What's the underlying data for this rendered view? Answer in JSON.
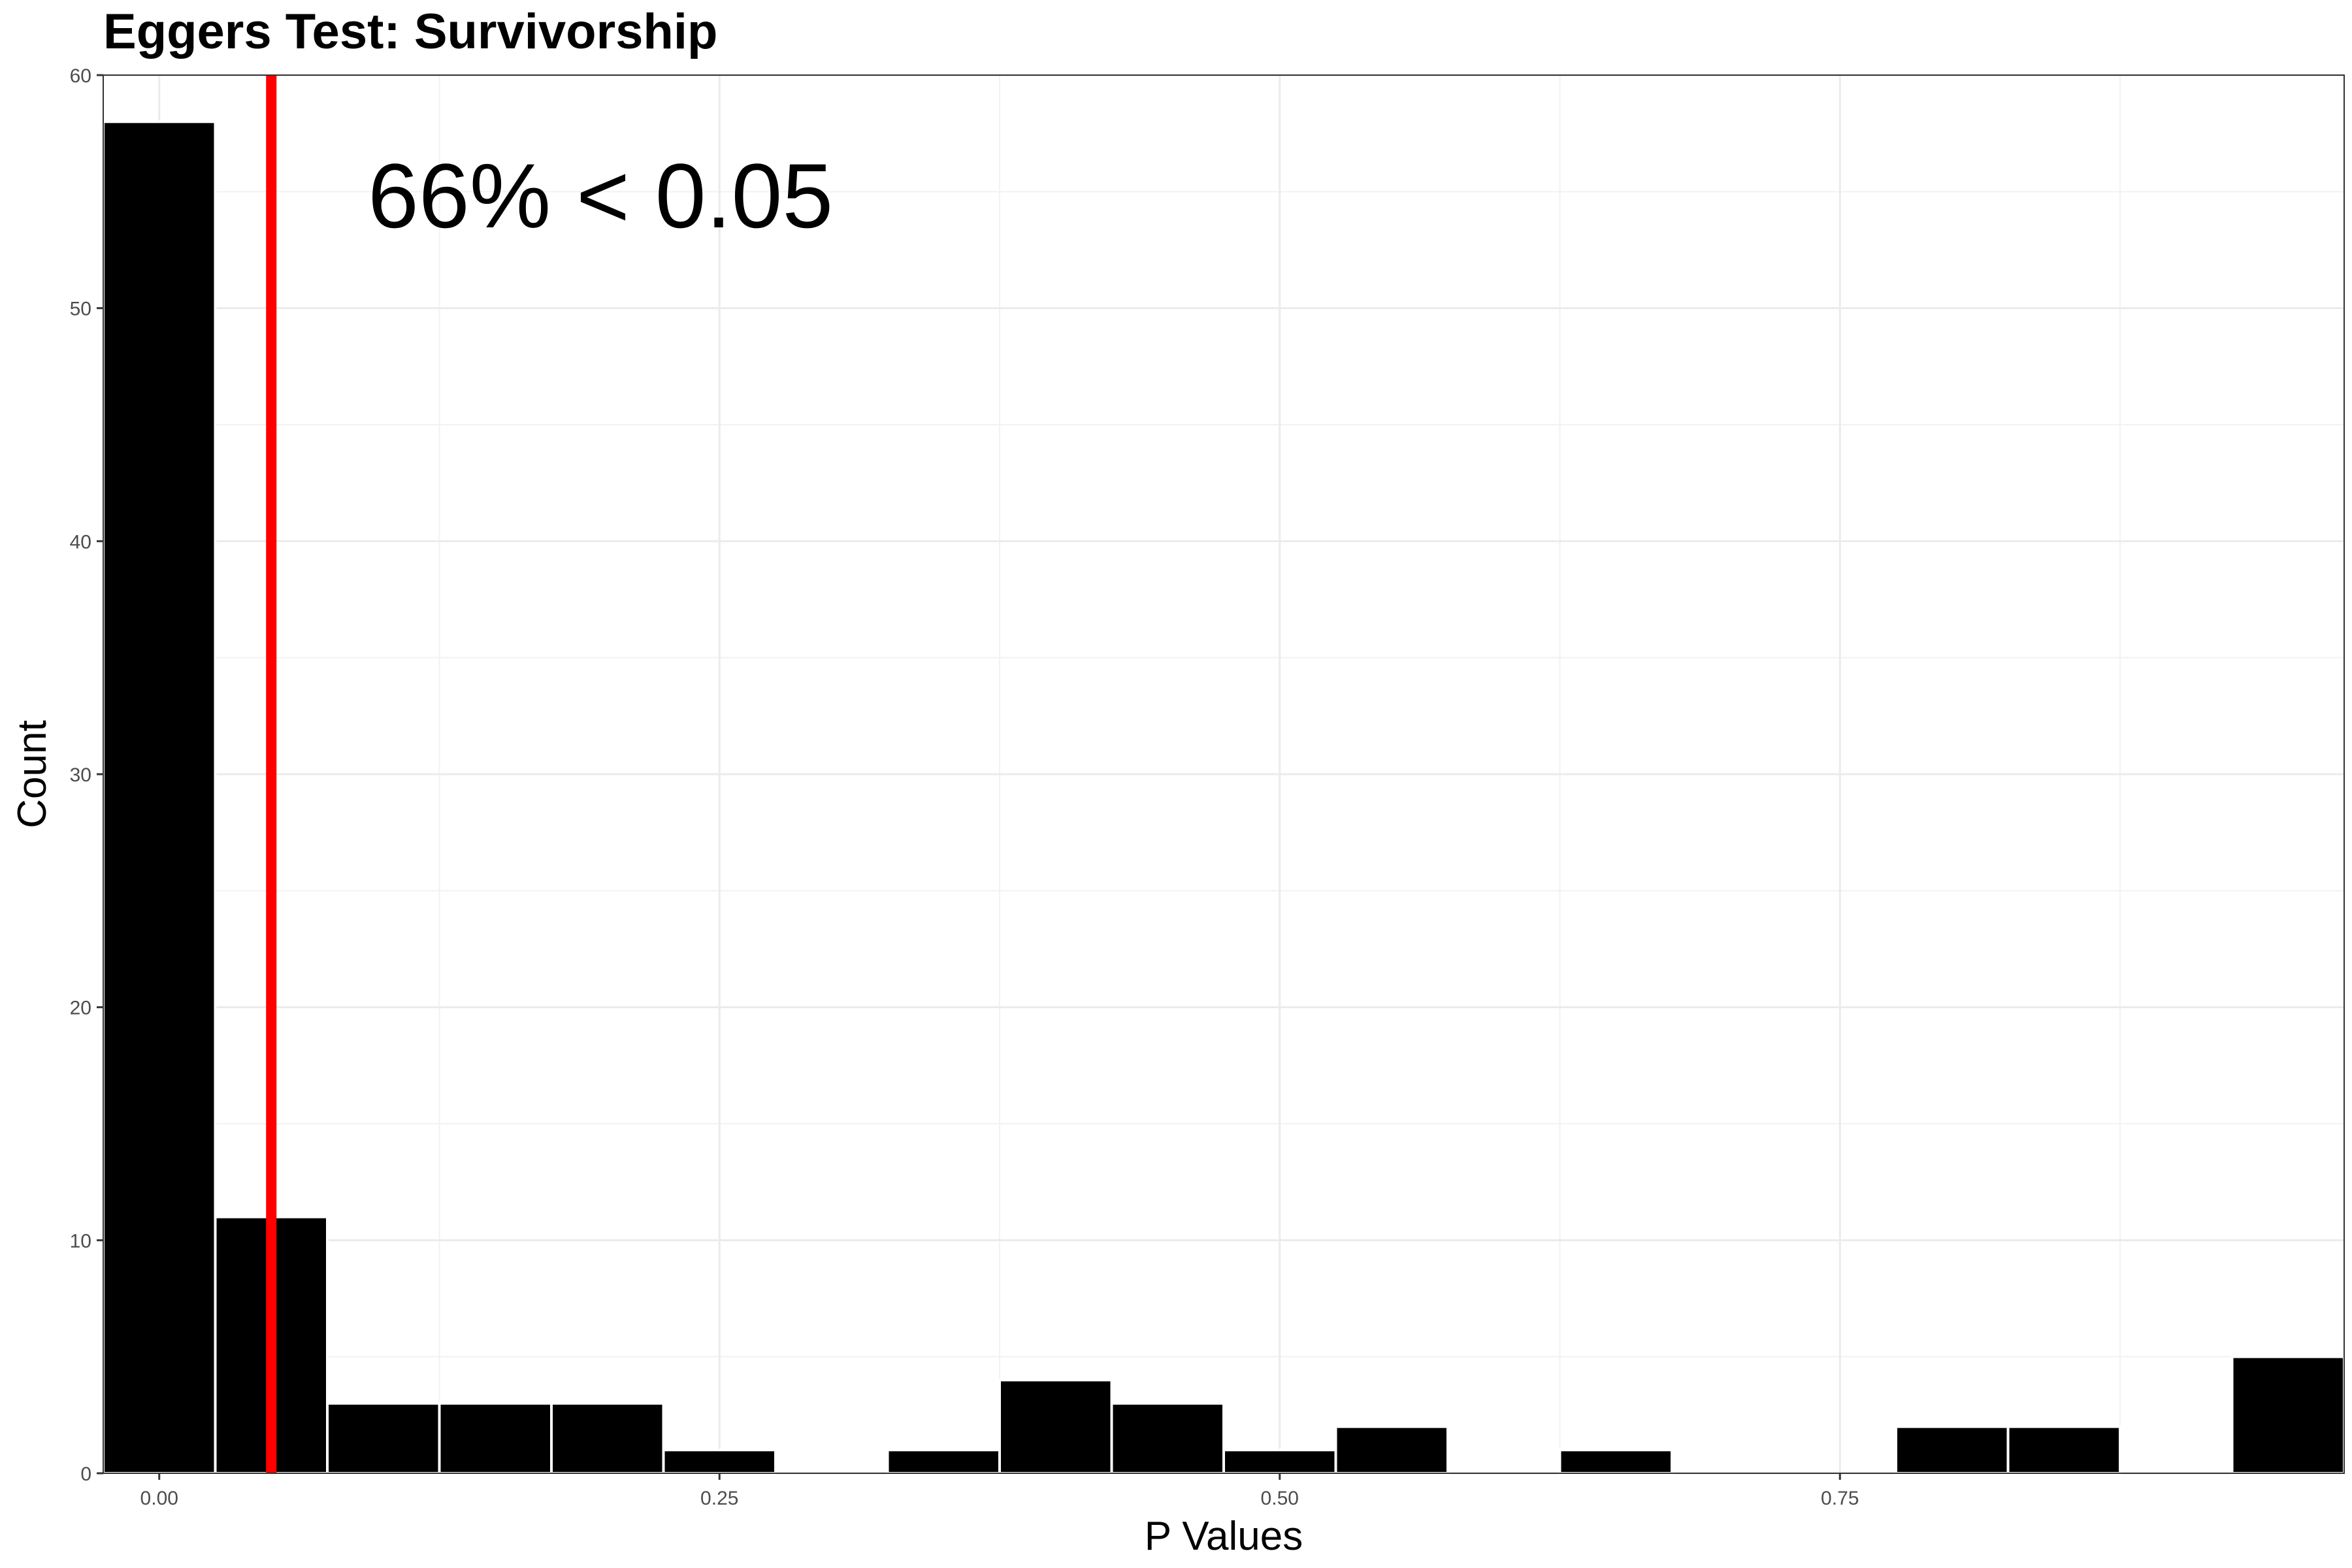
{
  "chart_data": {
    "type": "bar",
    "title": "Eggers Test: Survivorship",
    "xlabel": "P Values",
    "ylabel": "Count",
    "xlim": [
      -0.025,
      0.975
    ],
    "ylim": [
      0,
      60
    ],
    "x_ticks": [
      0.0,
      0.25,
      0.5,
      0.75
    ],
    "x_tick_labels": [
      "0.00",
      "0.25",
      "0.50",
      "0.75"
    ],
    "y_ticks": [
      0,
      10,
      20,
      30,
      40,
      50,
      60
    ],
    "y_tick_labels": [
      "0",
      "10",
      "20",
      "30",
      "40",
      "50",
      "60"
    ],
    "bin_width": 0.05,
    "bins": [
      {
        "x": 0.0,
        "count": 58
      },
      {
        "x": 0.05,
        "count": 11
      },
      {
        "x": 0.1,
        "count": 3
      },
      {
        "x": 0.15,
        "count": 3
      },
      {
        "x": 0.2,
        "count": 3
      },
      {
        "x": 0.25,
        "count": 1
      },
      {
        "x": 0.3,
        "count": 0
      },
      {
        "x": 0.35,
        "count": 1
      },
      {
        "x": 0.4,
        "count": 4
      },
      {
        "x": 0.45,
        "count": 3
      },
      {
        "x": 0.5,
        "count": 1
      },
      {
        "x": 0.55,
        "count": 2
      },
      {
        "x": 0.6,
        "count": 0
      },
      {
        "x": 0.65,
        "count": 1
      },
      {
        "x": 0.7,
        "count": 0
      },
      {
        "x": 0.75,
        "count": 0
      },
      {
        "x": 0.8,
        "count": 2
      },
      {
        "x": 0.85,
        "count": 2
      },
      {
        "x": 0.9,
        "count": 0
      },
      {
        "x": 0.95,
        "count": 5
      }
    ],
    "reference_line": {
      "x": 0.05,
      "color": "#ff0000"
    },
    "annotation": "66% < 0.05",
    "bar_color": "#000000",
    "bar_outline": "#ffffff",
    "grid": true
  }
}
